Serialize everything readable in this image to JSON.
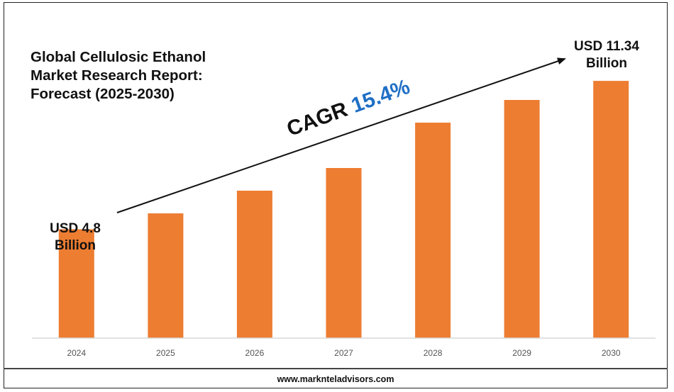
{
  "title_lines": [
    "Global Cellulosic Ethanol",
    "Market Research Report:",
    "Forecast (2025-2030)"
  ],
  "callouts": {
    "start": [
      "USD 4.8",
      "Billion"
    ],
    "end": [
      "USD 11.34",
      "Billion"
    ]
  },
  "cagr": {
    "label": "CAGR",
    "value": "15.4%"
  },
  "footer": "www.marknteladvisors.com",
  "colors": {
    "bar": "#ed7d31",
    "cagr_value": "#1f6fc5",
    "axis": "#d9d9d9"
  },
  "chart_data": {
    "type": "bar",
    "categories": [
      "2024",
      "2025",
      "2026",
      "2027",
      "2028",
      "2029",
      "2030"
    ],
    "values": [
      4.8,
      5.5,
      6.5,
      7.5,
      9.5,
      10.5,
      11.34
    ],
    "ylim": [
      0,
      12
    ],
    "grid": false,
    "title": "",
    "xlabel": "",
    "ylabel": ""
  }
}
